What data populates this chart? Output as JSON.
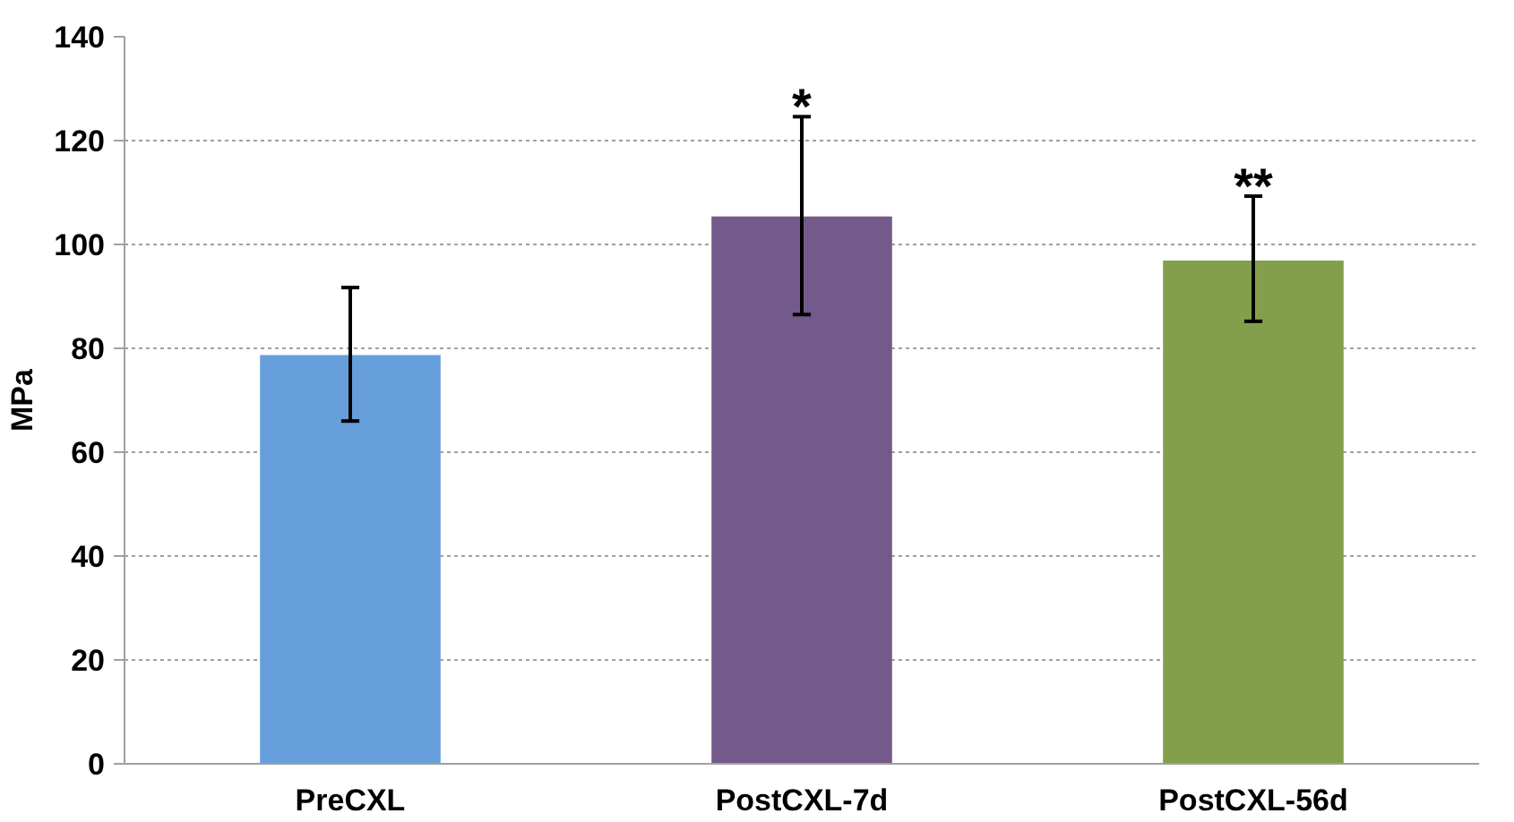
{
  "chart_data": {
    "type": "bar",
    "ylabel": "MPa",
    "categories": [
      "PreCXL",
      "PostCXL-7d",
      "PostCXL-56d"
    ],
    "values": [
      78.7,
      105.4,
      96.9
    ],
    "colors": [
      "#669fdc",
      "#745a8a",
      "#849f4b"
    ],
    "errors": [
      [
        66,
        91.7
      ],
      [
        86.5,
        124.6
      ],
      [
        85.2,
        109.3
      ]
    ],
    "ylim": [
      0,
      140
    ],
    "yticks": [
      0,
      20,
      40,
      60,
      80,
      100,
      120,
      140
    ],
    "grid": "y",
    "annotations": [
      "*",
      "**"
    ]
  }
}
